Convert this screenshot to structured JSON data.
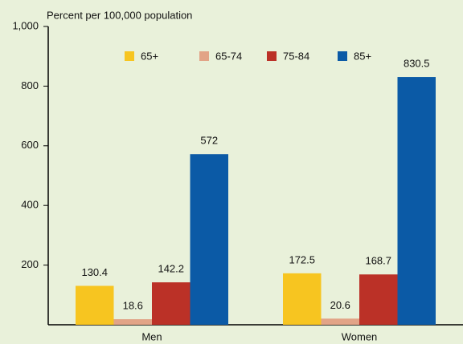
{
  "chart_data": {
    "type": "bar",
    "y_axis_label": "Percent per 100,000 population",
    "categories": [
      "Men",
      "Women"
    ],
    "series": [
      {
        "name": "65+",
        "color": "#f7c520",
        "values": [
          130.4,
          172.5
        ]
      },
      {
        "name": "65-74",
        "color": "#e2a487",
        "values": [
          18.6,
          20.6
        ]
      },
      {
        "name": "75-84",
        "color": "#bb3127",
        "values": [
          142.2,
          168.7
        ]
      },
      {
        "name": "85+",
        "color": "#0b5aa6",
        "values": [
          572,
          830.5
        ]
      }
    ],
    "ylim": [
      0,
      1000
    ],
    "yticks": [
      200,
      400,
      600,
      800,
      {
        "value": 1000,
        "label": "1,000"
      }
    ],
    "legend": "top"
  }
}
